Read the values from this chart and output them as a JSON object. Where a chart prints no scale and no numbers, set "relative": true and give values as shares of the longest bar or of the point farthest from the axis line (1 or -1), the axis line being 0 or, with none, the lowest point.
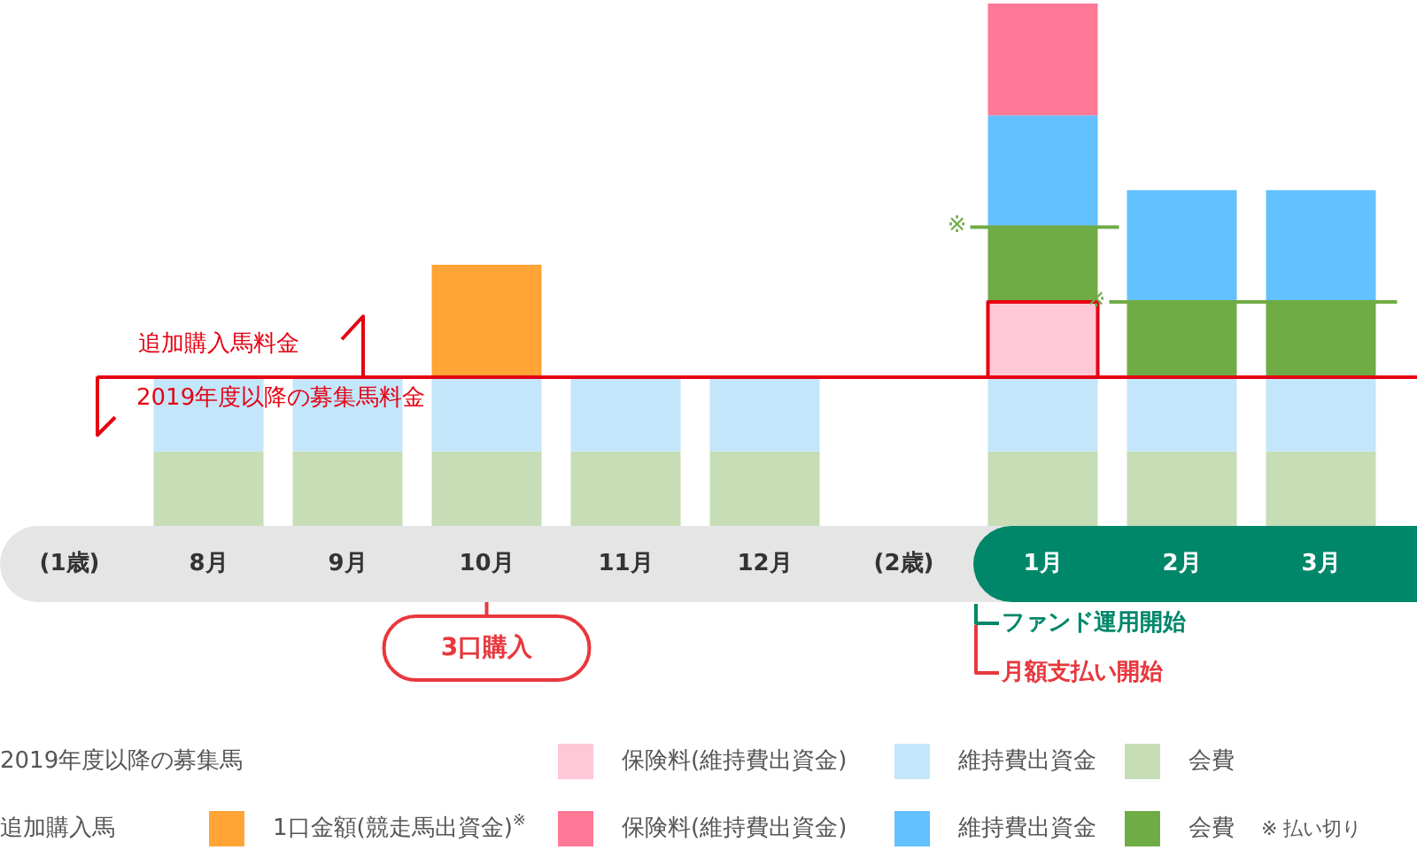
{
  "chart_data": {
    "type": "bar",
    "stacked": true,
    "relative": true,
    "categories": [
      "(1歳)",
      "8月",
      "9月",
      "10月",
      "11月",
      "12月",
      "(2歳)",
      "1月",
      "2月",
      "3月"
    ],
    "series": [
      {
        "name": "会費",
        "color": "#c6ddb6",
        "values": [
          null,
          0.143,
          0.143,
          0.143,
          0.143,
          0.143,
          null,
          0.143,
          0.143,
          0.143
        ]
      },
      {
        "name": "維持費出資金",
        "color": "#c3e6fb",
        "values": [
          null,
          0.143,
          0.143,
          0.143,
          0.143,
          0.143,
          null,
          0.143,
          0.143,
          0.143
        ]
      },
      {
        "name": "保険料(維持費出資金)",
        "color": "#ffc8d6",
        "values": [
          null,
          null,
          null,
          null,
          null,
          null,
          null,
          0.143,
          null,
          null
        ]
      },
      {
        "name": "会費",
        "color": "#70ac46",
        "values": [
          null,
          null,
          null,
          null,
          null,
          null,
          null,
          0.143,
          0.143,
          0.143
        ]
      },
      {
        "name": "維持費出資金",
        "color": "#63c1ff",
        "values": [
          null,
          null,
          null,
          null,
          null,
          null,
          null,
          0.214,
          0.214,
          0.214
        ]
      },
      {
        "name": "保険料(維持費出資金)",
        "color": "#ff7896",
        "values": [
          null,
          null,
          null,
          null,
          null,
          null,
          null,
          0.214,
          null,
          null
        ]
      },
      {
        "name": "1口金額(競走馬出資金)$^{※}$",
        "color": "#ffa435",
        "values": [
          null,
          null,
          null,
          0.214,
          null,
          null,
          null,
          null,
          null,
          null
        ]
      }
    ],
    "legend": "bottom",
    "ref_lines": [
      {
        "axis": "y",
        "value": 0.286,
        "label": "2019年度以降の募集馬料金",
        "color": "#e60012"
      }
    ],
    "annotations": [
      "追加購入馬料金",
      "2019年度以降の募集馬",
      "追加購入馬",
      "※ 払い切り",
      "ファンド運用開始",
      "月額支払い開始",
      {
        "text": "3口購入",
        "x": "10月"
      },
      "※",
      "※"
    ]
  }
}
